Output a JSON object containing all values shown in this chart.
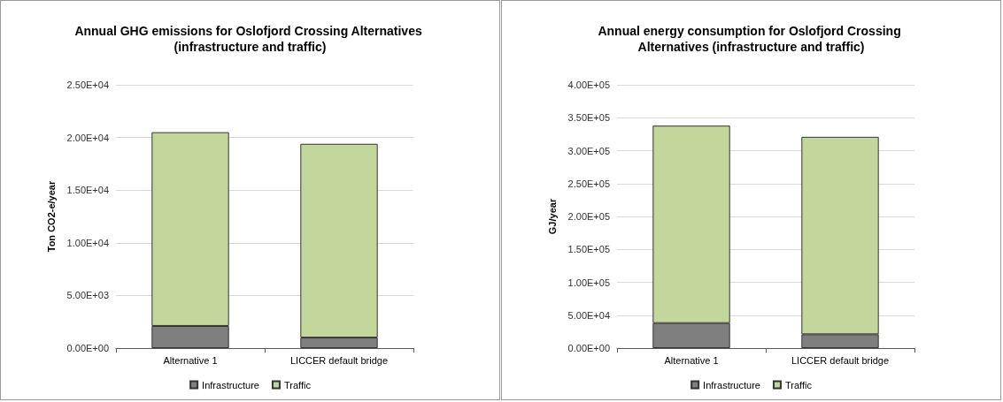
{
  "chart_data": [
    {
      "type": "bar",
      "stacked": true,
      "title": "Annual GHG emissions for Oslofjord Crossing Alternatives (infrastructure and traffic)",
      "ylabel": "Ton CO2-e/year",
      "categories": [
        "Alternative 1",
        "LICCER default bridge"
      ],
      "series": [
        {
          "name": "Infrastructure",
          "color": "#7f7f7f",
          "values": [
            2100,
            1000
          ]
        },
        {
          "name": "Traffic",
          "color": "#c3d69b",
          "values": [
            18400,
            18400
          ]
        }
      ],
      "ylim": [
        0,
        25000
      ],
      "yticks": [
        {
          "value": 0,
          "label": "0.00E+00"
        },
        {
          "value": 5000,
          "label": "5.00E+03"
        },
        {
          "value": 10000,
          "label": "1.00E+04"
        },
        {
          "value": 15000,
          "label": "1.50E+04"
        },
        {
          "value": 20000,
          "label": "2.00E+04"
        },
        {
          "value": 25000,
          "label": "2.50E+04"
        }
      ],
      "grid": "y",
      "legend": "bottom"
    },
    {
      "type": "bar",
      "stacked": true,
      "title": "Annual energy consumption for Oslofjord Crossing Alternatives (infrastructure and traffic)",
      "ylabel": "GJ/year",
      "categories": [
        "Alternative 1",
        "LICCER default bridge"
      ],
      "series": [
        {
          "name": "Infrastructure",
          "color": "#7f7f7f",
          "values": [
            38000,
            21000
          ]
        },
        {
          "name": "Traffic",
          "color": "#c3d69b",
          "values": [
            300000,
            300000
          ]
        }
      ],
      "ylim": [
        0,
        400000
      ],
      "yticks": [
        {
          "value": 0,
          "label": "0.00E+00"
        },
        {
          "value": 50000,
          "label": "5.00E+04"
        },
        {
          "value": 100000,
          "label": "1.00E+05"
        },
        {
          "value": 150000,
          "label": "1.50E+05"
        },
        {
          "value": 200000,
          "label": "2.00E+05"
        },
        {
          "value": 250000,
          "label": "2.50E+05"
        },
        {
          "value": 300000,
          "label": "3.00E+05"
        },
        {
          "value": 350000,
          "label": "3.50E+05"
        },
        {
          "value": 400000,
          "label": "4.00E+05"
        }
      ],
      "grid": "y",
      "legend": "bottom"
    }
  ]
}
